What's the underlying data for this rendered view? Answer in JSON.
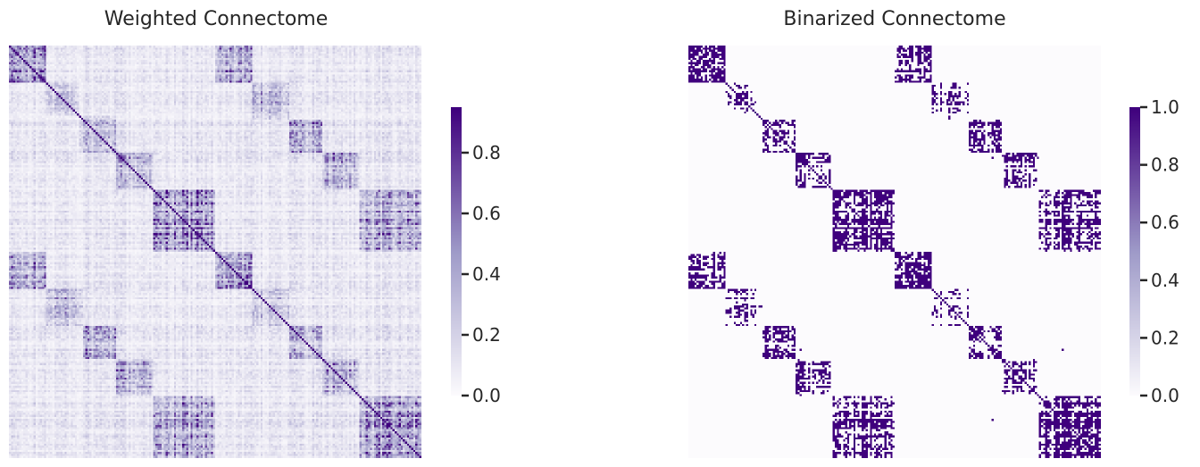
{
  "chart_data": [
    {
      "type": "heatmap",
      "title": "Weighted Connectome",
      "xlabel": "",
      "ylabel": "",
      "colormap": "Purples",
      "value_range": [
        0,
        0.95
      ],
      "colorbar": {
        "ticks": [
          0.0,
          0.2,
          0.4,
          0.6,
          0.8
        ],
        "tick_labels": [
          "0.0",
          "0.2",
          "0.4",
          "0.6",
          "0.8"
        ]
      },
      "matrix_size": 200,
      "symmetric": true,
      "diagonal": 1.0,
      "module_boundaries": [
        0,
        18,
        34,
        52,
        70,
        100,
        118,
        136,
        152,
        170,
        200
      ],
      "module_strengths": [
        0.55,
        0.3,
        0.3,
        0.38,
        0.55,
        0.55,
        0.3,
        0.3,
        0.38,
        0.45
      ],
      "mirror_offset": 100,
      "mirror_strength": 0.45,
      "background_level": 0.12,
      "grid": false,
      "legend": "colorbar-right"
    },
    {
      "type": "heatmap",
      "title": "Binarized Connectome",
      "xlabel": "",
      "ylabel": "",
      "colormap": "Purples",
      "value_range": [
        0,
        1.0
      ],
      "colorbar": {
        "ticks": [
          0.0,
          0.2,
          0.4,
          0.6,
          0.8,
          1.0
        ],
        "tick_labels": [
          "0.0",
          "0.2",
          "0.4",
          "0.6",
          "0.8",
          "1.0"
        ]
      },
      "matrix_size": 200,
      "binarized": true,
      "threshold": 0.5,
      "source": "Weighted Connectome",
      "grid": false,
      "legend": "colorbar-right"
    }
  ],
  "colors": {
    "cmap_low": "#fcfbfd",
    "cmap_mid": "#9e9ac8",
    "cmap_high": "#3f007d",
    "text": "#262626"
  }
}
